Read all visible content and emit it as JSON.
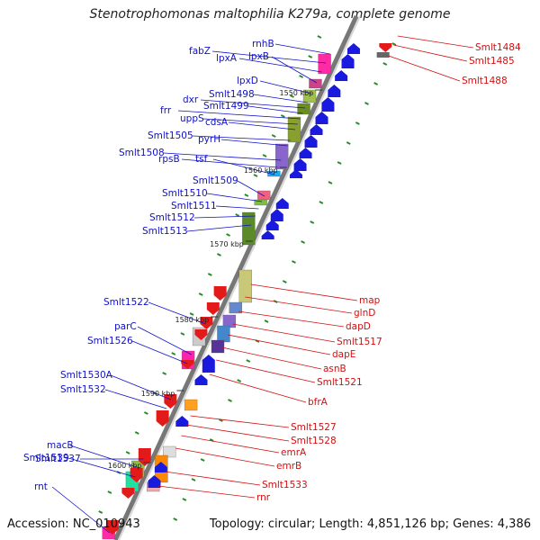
{
  "title": "Stenotrophomonas maltophilia K279a, complete genome",
  "accession_label": "Accession:",
  "accession": "NC_010943",
  "topology_text": "Topology: circular; Length: 4,851,126 bp; Genes: 4,386",
  "ticks": [
    "1550 kbp",
    "1560 kbp",
    "1570 kbp",
    "1580 kbp",
    "1590 kbp",
    "1600 kbp"
  ],
  "genes_left": [
    "rnhB",
    "fabZ",
    "lpxA",
    "lpxB",
    "lpxD",
    "Smlt1498",
    "dxr",
    "Smlt1499",
    "frr",
    "uppS",
    "cdsA",
    "Smlt1505",
    "pyrH",
    "Smlt1508",
    "rpsB",
    "tsf",
    "Smlt1509",
    "Smlt1510",
    "Smlt1511",
    "Smlt1512",
    "Smlt1513",
    "Smlt1522",
    "parC",
    "Smlt1526",
    "Smlt1530A",
    "Smlt1532",
    "Smlt1537",
    "macB",
    "Smlt1539",
    "rnt"
  ],
  "genes_right": [
    "Smlt1484",
    "Smlt1485",
    "Smlt1488",
    "map",
    "glnD",
    "dapD",
    "Smlt1517",
    "dapE",
    "asnB",
    "Smlt1521",
    "bfrA",
    "Smlt1527",
    "Smlt1528",
    "emrA",
    "emrB",
    "Smlt1533",
    "rnr"
  ],
  "colors": {
    "blue_label": "#1010c8",
    "red_label": "#d01010",
    "forward_gene": "#1a1adf",
    "reverse_gene": "#e21a1a",
    "backbone": "#888888",
    "gc_dot": "#2a8a2a"
  }
}
